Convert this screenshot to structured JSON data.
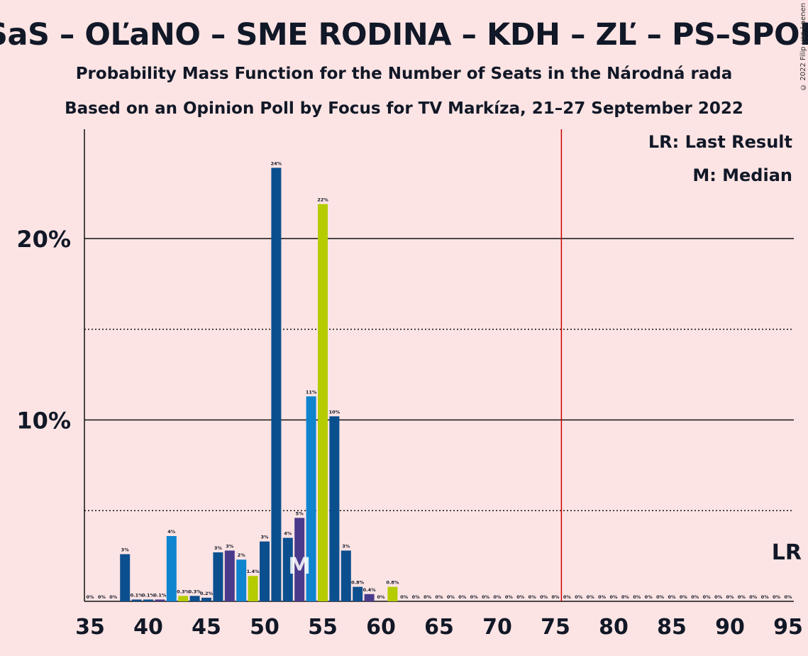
{
  "title": "SaS – OĽaNO – SME RODINA – KDH – ZĽ – PS–SPOLU",
  "subtitle": "Probability Mass Function for the Number of Seats in the Národná rada",
  "poll": "Based on an Opinion Poll by Focus for TV Markíza, 21–27 September 2022",
  "copyright": "© 2022 Filip van Laenen",
  "legend": {
    "last_result": "LR: Last Result",
    "median": "M: Median"
  },
  "chart_data": {
    "type": "bar",
    "xlim": [
      35,
      95
    ],
    "ylim": [
      0,
      25
    ],
    "x_ticks": [
      35,
      40,
      45,
      50,
      55,
      60,
      65,
      70,
      75,
      80,
      85,
      90,
      95
    ],
    "y_ticks": [
      {
        "value": 10,
        "label": "10%"
      },
      {
        "value": 20,
        "label": "20%"
      }
    ],
    "dotted_lines": [
      5,
      15
    ],
    "last_result": {
      "x": 76,
      "label": "LR"
    },
    "median": {
      "x": 53,
      "label": "M"
    },
    "colors": {
      "dark_blue": "#0b4f8f",
      "light_blue": "#0e84cf",
      "purple": "#4a3a8c",
      "lime": "#b4cc00",
      "lr_line": "#cc0000",
      "background": "#fde4e4"
    },
    "bars": [
      {
        "x": 35,
        "value": 0,
        "label": "0%",
        "color": "dark_blue"
      },
      {
        "x": 36,
        "value": 0,
        "label": "0%",
        "color": "dark_blue"
      },
      {
        "x": 37,
        "value": 0,
        "label": "0%",
        "color": "dark_blue"
      },
      {
        "x": 38,
        "value": 2.6,
        "label": "3%",
        "color": "dark_blue"
      },
      {
        "x": 39,
        "value": 0.1,
        "label": "0.1%",
        "color": "dark_blue"
      },
      {
        "x": 40,
        "value": 0.1,
        "label": "0.1%",
        "color": "dark_blue"
      },
      {
        "x": 41,
        "value": 0.1,
        "label": "0.1%",
        "color": "purple"
      },
      {
        "x": 42,
        "value": 3.6,
        "label": "4%",
        "color": "light_blue"
      },
      {
        "x": 43,
        "value": 0.3,
        "label": "0.3%",
        "color": "lime"
      },
      {
        "x": 44,
        "value": 0.3,
        "label": "0.3%",
        "color": "dark_blue"
      },
      {
        "x": 45,
        "value": 0.2,
        "label": "0.2%",
        "color": "dark_blue"
      },
      {
        "x": 46,
        "value": 2.7,
        "label": "3%",
        "color": "dark_blue"
      },
      {
        "x": 47,
        "value": 2.8,
        "label": "3%",
        "color": "purple"
      },
      {
        "x": 48,
        "value": 2.3,
        "label": "2%",
        "color": "light_blue"
      },
      {
        "x": 49,
        "value": 1.4,
        "label": "1.4%",
        "color": "lime"
      },
      {
        "x": 50,
        "value": 3.3,
        "label": "3%",
        "color": "dark_blue"
      },
      {
        "x": 51,
        "value": 23.9,
        "label": "24%",
        "color": "dark_blue"
      },
      {
        "x": 52,
        "value": 3.5,
        "label": "4%",
        "color": "dark_blue"
      },
      {
        "x": 53,
        "value": 4.6,
        "label": "5%",
        "color": "purple"
      },
      {
        "x": 54,
        "value": 11.3,
        "label": "11%",
        "color": "light_blue"
      },
      {
        "x": 55,
        "value": 21.9,
        "label": "22%",
        "color": "lime"
      },
      {
        "x": 56,
        "value": 10.2,
        "label": "10%",
        "color": "dark_blue"
      },
      {
        "x": 57,
        "value": 2.8,
        "label": "3%",
        "color": "dark_blue"
      },
      {
        "x": 58,
        "value": 0.8,
        "label": "0.8%",
        "color": "dark_blue"
      },
      {
        "x": 59,
        "value": 0.4,
        "label": "0.4%",
        "color": "purple"
      },
      {
        "x": 60,
        "value": 0,
        "label": "0%",
        "color": "light_blue"
      },
      {
        "x": 61,
        "value": 0.8,
        "label": "0.8%",
        "color": "lime"
      },
      {
        "x": 62,
        "value": 0,
        "label": "0%",
        "color": "dark_blue"
      },
      {
        "x": 63,
        "value": 0,
        "label": "0%",
        "color": "dark_blue"
      },
      {
        "x": 64,
        "value": 0,
        "label": "0%",
        "color": "dark_blue"
      },
      {
        "x": 65,
        "value": 0,
        "label": "0%",
        "color": "dark_blue"
      },
      {
        "x": 66,
        "value": 0,
        "label": "0%",
        "color": "dark_blue"
      },
      {
        "x": 67,
        "value": 0,
        "label": "0%",
        "color": "dark_blue"
      },
      {
        "x": 68,
        "value": 0,
        "label": "0%",
        "color": "dark_blue"
      },
      {
        "x": 69,
        "value": 0,
        "label": "0%",
        "color": "dark_blue"
      },
      {
        "x": 70,
        "value": 0,
        "label": "0%",
        "color": "dark_blue"
      },
      {
        "x": 71,
        "value": 0,
        "label": "0%",
        "color": "dark_blue"
      },
      {
        "x": 72,
        "value": 0,
        "label": "0%",
        "color": "dark_blue"
      },
      {
        "x": 73,
        "value": 0,
        "label": "0%",
        "color": "dark_blue"
      },
      {
        "x": 74,
        "value": 0,
        "label": "0%",
        "color": "dark_blue"
      },
      {
        "x": 75,
        "value": 0,
        "label": "0%",
        "color": "dark_blue"
      },
      {
        "x": 76,
        "value": 0,
        "label": "0%",
        "color": "dark_blue"
      },
      {
        "x": 77,
        "value": 0,
        "label": "0%",
        "color": "dark_blue"
      },
      {
        "x": 78,
        "value": 0,
        "label": "0%",
        "color": "dark_blue"
      },
      {
        "x": 79,
        "value": 0,
        "label": "0%",
        "color": "dark_blue"
      },
      {
        "x": 80,
        "value": 0,
        "label": "0%",
        "color": "dark_blue"
      },
      {
        "x": 81,
        "value": 0,
        "label": "0%",
        "color": "dark_blue"
      },
      {
        "x": 82,
        "value": 0,
        "label": "0%",
        "color": "dark_blue"
      },
      {
        "x": 83,
        "value": 0,
        "label": "0%",
        "color": "dark_blue"
      },
      {
        "x": 84,
        "value": 0,
        "label": "0%",
        "color": "dark_blue"
      },
      {
        "x": 85,
        "value": 0,
        "label": "0%",
        "color": "dark_blue"
      },
      {
        "x": 86,
        "value": 0,
        "label": "0%",
        "color": "dark_blue"
      },
      {
        "x": 87,
        "value": 0,
        "label": "0%",
        "color": "dark_blue"
      },
      {
        "x": 88,
        "value": 0,
        "label": "0%",
        "color": "dark_blue"
      },
      {
        "x": 89,
        "value": 0,
        "label": "0%",
        "color": "dark_blue"
      },
      {
        "x": 90,
        "value": 0,
        "label": "0%",
        "color": "dark_blue"
      },
      {
        "x": 91,
        "value": 0,
        "label": "0%",
        "color": "dark_blue"
      },
      {
        "x": 92,
        "value": 0,
        "label": "0%",
        "color": "dark_blue"
      },
      {
        "x": 93,
        "value": 0,
        "label": "0%",
        "color": "dark_blue"
      },
      {
        "x": 94,
        "value": 0,
        "label": "0%",
        "color": "dark_blue"
      },
      {
        "x": 95,
        "value": 0,
        "label": "0%",
        "color": "dark_blue"
      }
    ]
  }
}
